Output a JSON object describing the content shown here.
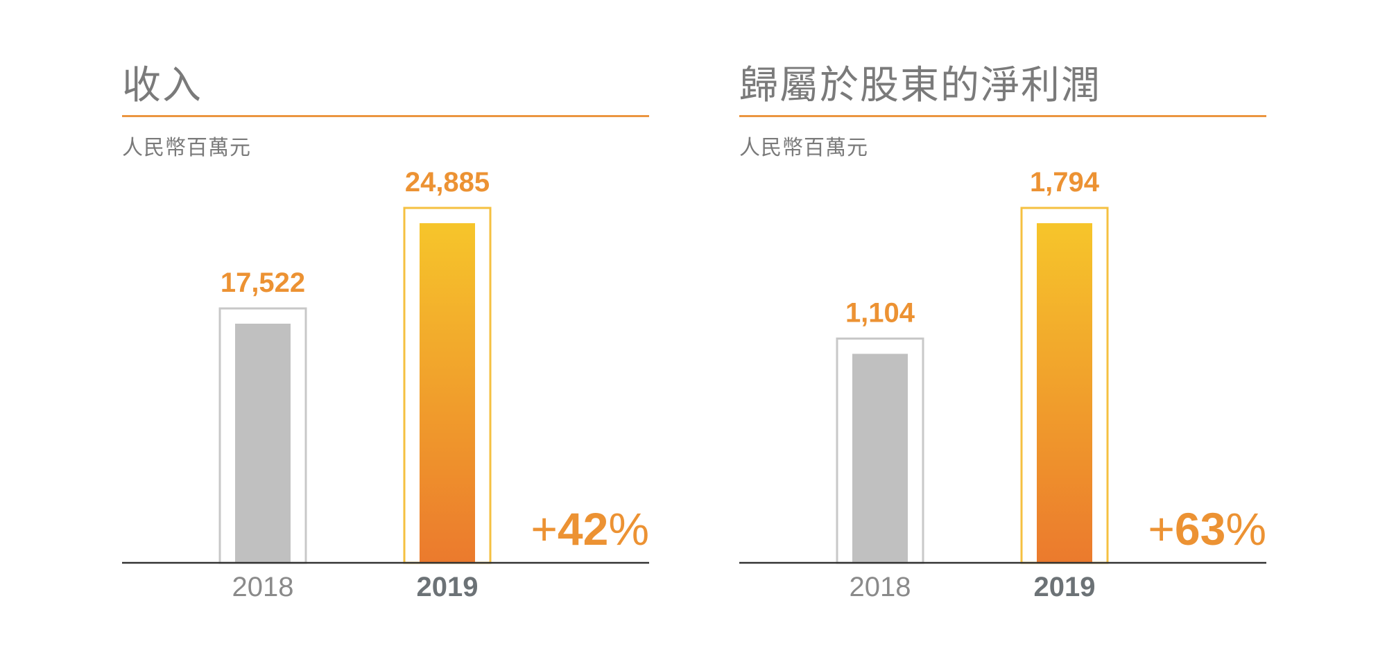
{
  "colors": {
    "accent": "#eb9540",
    "bar_prev": "#c0c0c0",
    "bar_prev_outline": "#c8c8c8",
    "bar_curr_top": "#f6c52b",
    "bar_curr_bottom": "#eb7a2d",
    "bar_curr_outline": "#f5c040",
    "axis": "#333333"
  },
  "chart_data": [
    {
      "type": "bar",
      "title": "收入",
      "subtitle": "人民幣百萬元",
      "categories": [
        "2018",
        "2019"
      ],
      "values": [
        17522,
        24885
      ],
      "value_labels": [
        "17,522",
        "24,885"
      ],
      "change": "+42%",
      "change_parts": {
        "sign": "+",
        "number": "42",
        "percent": "%"
      },
      "highlight_index": 1,
      "ylim": [
        0,
        24885
      ],
      "grid": false
    },
    {
      "type": "bar",
      "title": "歸屬於股東的淨利潤",
      "subtitle": "人民幣百萬元",
      "categories": [
        "2018",
        "2019"
      ],
      "values": [
        1104,
        1794
      ],
      "value_labels": [
        "1,104",
        "1,794"
      ],
      "change": "+63%",
      "change_parts": {
        "sign": "+",
        "number": "63",
        "percent": "%"
      },
      "highlight_index": 1,
      "ylim": [
        0,
        1794
      ],
      "grid": false
    }
  ]
}
